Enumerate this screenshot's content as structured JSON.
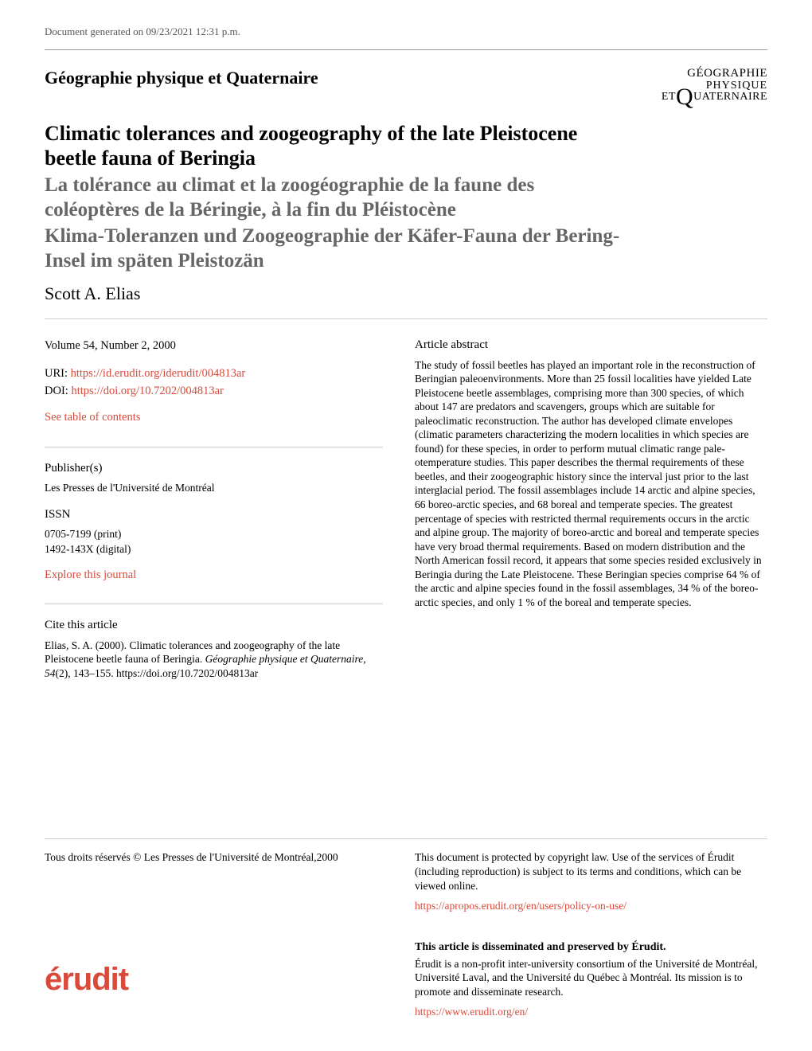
{
  "header": {
    "generated": "Document generated on 09/23/2021 12:31 p.m."
  },
  "journal": {
    "name": "Géographie physique et Quaternaire",
    "logo": {
      "line1_pre": "G",
      "line1": "ÉOGRAPHIE",
      "line2": "PHYSIQUE",
      "line3_pre": "ET",
      "q": "Q",
      "line3": "UATERNAIRE"
    }
  },
  "article": {
    "title": "Climatic tolerances and zoogeography of the late Pleistocene beetle fauna of Beringia",
    "subtitle_fr": "La tolérance au climat et la zoogéographie de la faune des coléoptères de la Béringie, à la fin du Pléistocène",
    "subtitle_de": "Klima-Toleranzen und Zoogeographie der Käfer-Fauna der Bering-Insel im späten Pleistozän",
    "author": "Scott A. Elias"
  },
  "meta": {
    "volume": "Volume 54, Number 2, 2000",
    "uri_label": "URI: ",
    "uri": "https://id.erudit.org/iderudit/004813ar",
    "doi_label": "DOI: ",
    "doi": "https://doi.org/10.7202/004813ar",
    "toc_link": "See table of contents",
    "publisher_head": "Publisher(s)",
    "publisher": "Les Presses de l'Université de Montréal",
    "issn_head": "ISSN",
    "issn_print": "0705-7199 (print)",
    "issn_digital": "1492-143X (digital)",
    "explore_link": "Explore this journal",
    "cite_head": "Cite this article",
    "cite_text_1": "Elias, S. A. (2000). Climatic tolerances and zoogeography of the late Pleistocene beetle fauna of Beringia. ",
    "cite_journal": "Géographie physique et Quaternaire",
    "cite_text_2": ", ",
    "cite_vol": "54",
    "cite_text_3": "(2), 143–155. https://doi.org/10.7202/004813ar"
  },
  "abstract": {
    "head": "Article abstract",
    "body": "The study of fossil beetles has played an important role in the reconstruction of Beringian paleoenvironments. More than 25 fossil localities have yielded Late Pleistocene beetle assemblages, comprising more than 300 species, of which about 147 are predators and scavengers, groups which are suitable for paleoclimatic reconstruction. The author has developed climate envelopes (climatic parameters characterizing the modern localities in which species are found) for these species, in order to perform mutual climatic range pale- otemperature studies. This paper describes the thermal requirements of these beetles, and their zoogeographic history since the interval just prior to the last interglacial period. The fossil assemblages include 14 arctic and alpine species, 66 boreo-arctic species, and 68 boreal and temperate species. The greatest percentage of species with restricted thermal requirements occurs in the arctic and alpine group. The majority of boreo-arctic and boreal and temperate species have very broad thermal requirements. Based on modern distribution and the North American fossil record, it appears that some species resided exclusively in Beringia during the Late Pleistocene. These Beringian species comprise 64 % of the arctic and alpine species found in the fossil assemblages, 34 % of the boreo-arctic species, and only 1 % of the boreal and temperate species."
  },
  "footer": {
    "copyright": "Tous droits réservés © Les Presses de l'Université de Montréal,2000",
    "protected": "This document is protected by copyright law. Use of the services of Érudit (including reproduction) is subject to its terms and conditions, which can be viewed online.",
    "policy_link": "https://apropos.erudit.org/en/users/policy-on-use/",
    "disseminated_head": "This article is disseminated and preserved by Érudit.",
    "disseminated_body": "Érudit is a non-profit inter-university consortium of the Université de Montréal, Université Laval, and the Université du Québec à Montréal. Its mission is to promote and disseminate research.",
    "erudit_link": "https://www.erudit.org/en/",
    "logo_text": "érudit"
  },
  "colors": {
    "link": "#d94a3a",
    "text": "#000000",
    "muted": "#666666",
    "rule": "#cccccc"
  }
}
